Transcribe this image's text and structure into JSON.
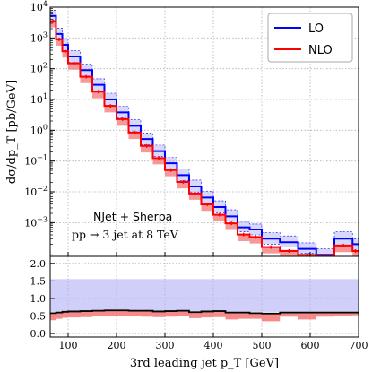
{
  "chart_data": {
    "type": "line",
    "draw_style": "step",
    "x_bin_edges": [
      63,
      75,
      88,
      100,
      125,
      150,
      175,
      200,
      225,
      250,
      275,
      300,
      325,
      350,
      375,
      400,
      425,
      450,
      475,
      500,
      537.5,
      575,
      612.5,
      650,
      687.5,
      700
    ],
    "series": [
      {
        "name": "LO",
        "color": "#0000ff",
        "band_color": "#a8a8f4",
        "values": [
          5200,
          1350,
          600,
          250,
          90,
          30,
          10,
          3.8,
          1.4,
          0.52,
          0.21,
          0.085,
          0.035,
          0.015,
          0.0065,
          0.0032,
          0.0016,
          0.0007,
          0.0006,
          0.0003,
          0.00023,
          0.00014,
          9e-05,
          0.0003,
          0.0002
        ],
        "band_lo": [
          3300,
          850,
          380,
          160,
          58,
          19,
          6.5,
          2.5,
          0.9,
          0.34,
          0.14,
          0.056,
          0.023,
          0.0099,
          0.0043,
          0.0021,
          0.0011,
          0.0005,
          0.0004,
          0.0002,
          0.00016,
          0.0001,
          6e-05,
          0.00018,
          0.00013
        ],
        "band_hi": [
          8000,
          2100,
          930,
          390,
          140,
          47,
          16,
          6,
          2.2,
          0.82,
          0.33,
          0.13,
          0.055,
          0.024,
          0.0103,
          0.0051,
          0.0026,
          0.0011,
          0.0009,
          0.00047,
          0.00037,
          0.00022,
          0.00014,
          0.0005,
          0.0003
        ]
      },
      {
        "name": "NLO",
        "color": "#ff0000",
        "band_color": "#f47676",
        "values": [
          3500,
          900,
          370,
          150,
          55,
          18,
          6.2,
          2.3,
          0.84,
          0.31,
          0.125,
          0.051,
          0.021,
          0.0088,
          0.0039,
          0.0018,
          0.00095,
          0.00041,
          0.00034,
          0.00016,
          0.00012,
          9e-05,
          5e-05,
          0.00018,
          0.00012
        ],
        "band_lo": [
          2200,
          560,
          230,
          93,
          34,
          11,
          3.8,
          1.4,
          0.52,
          0.19,
          0.078,
          0.032,
          0.013,
          0.0055,
          0.0024,
          0.0011,
          0.00058,
          0.00025,
          0.00021,
          0.0001,
          7.5e-05,
          5.5e-05,
          3e-05,
          0.00011,
          7.4e-05
        ],
        "band_hi": [
          3600,
          930,
          385,
          155,
          57,
          18.6,
          6.4,
          2.4,
          0.87,
          0.32,
          0.13,
          0.053,
          0.022,
          0.0091,
          0.004,
          0.0019,
          0.00098,
          0.00043,
          0.00035,
          0.00017,
          0.00013,
          9.3e-05,
          5.2e-05,
          0.000186,
          0.000124
        ],
        "errors": true
      }
    ],
    "ratio_panel": {
      "ylim": [
        -0.1,
        2.2
      ],
      "yticks": [
        "0.0",
        "0.5",
        "1.0",
        "1.5",
        "2.0"
      ],
      "lo_band": [
        0.62,
        1.55
      ],
      "nlo_ratio": [
        0.58,
        0.6,
        0.62,
        0.63,
        0.64,
        0.65,
        0.66,
        0.66,
        0.65,
        0.65,
        0.63,
        0.64,
        0.65,
        0.61,
        0.63,
        0.64,
        0.6,
        0.6,
        0.58,
        0.57,
        0.6,
        0.6,
        0.6,
        0.6,
        0.6
      ],
      "nlo_band_lo": [
        0.38,
        0.42,
        0.45,
        0.46,
        0.47,
        0.5,
        0.5,
        0.5,
        0.49,
        0.48,
        0.47,
        0.48,
        0.49,
        0.44,
        0.46,
        0.47,
        0.4,
        0.42,
        0.42,
        0.35,
        0.48,
        0.4,
        0.48,
        0.5,
        0.52
      ]
    },
    "xlabel": "3rd leading jet p_T [GeV]",
    "ylabel": "dσ/dp_T [pb/GeV]",
    "xlim": [
      63,
      700
    ],
    "ylim_log": [
      8e-05,
      10000
    ],
    "xticks": [
      "100",
      "200",
      "300",
      "400",
      "500",
      "600",
      "700"
    ],
    "yticks_exp": [
      "-3",
      "-2",
      "-1",
      "0",
      "1",
      "2",
      "3",
      "4"
    ],
    "legend_position": "top-right",
    "grid": true,
    "annotations": {
      "line1": "NJet + Sherpa",
      "line2": "pp → 3 jet at 8 TeV"
    }
  }
}
